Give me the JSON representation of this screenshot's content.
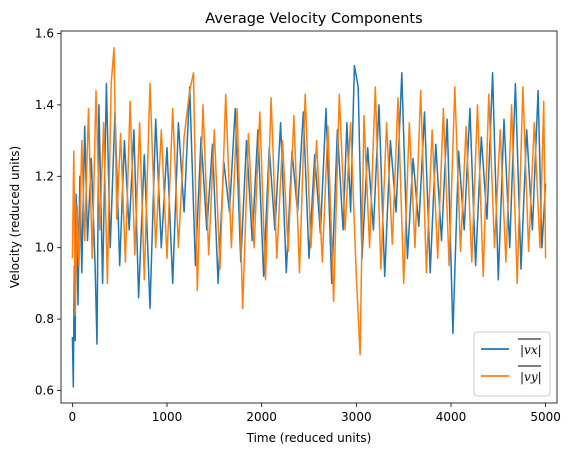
{
  "chart_data": {
    "type": "line",
    "title": "Average Velocity Components",
    "xlabel": "Time (reduced units)",
    "ylabel": "Velocity (reduced units)",
    "xlim": [
      -120,
      5120
    ],
    "ylim": [
      0.565,
      1.607
    ],
    "xticks": [
      0,
      1000,
      2000,
      3000,
      4000,
      5000
    ],
    "xtick_labels": [
      "0",
      "1000",
      "2000",
      "3000",
      "4000",
      "5000"
    ],
    "yticks": [
      0.6,
      0.8,
      1.0,
      1.2,
      1.4,
      1.6
    ],
    "ytick_labels": [
      "0.6",
      "0.8",
      "1.0",
      "1.2",
      "1.4",
      "1.6"
    ],
    "grid": false,
    "legend_position": "lower-right",
    "series": [
      {
        "name": "|v_x| (overlined)",
        "legend_label": "|vx|",
        "color": "#1f77b4",
        "x": [
          0,
          10,
          20,
          30,
          40,
          60,
          80,
          100,
          130,
          160,
          200,
          240,
          260,
          280,
          320,
          360,
          400,
          450,
          500,
          550,
          600,
          650,
          700,
          760,
          820,
          880,
          940,
          1000,
          1060,
          1120,
          1180,
          1240,
          1300,
          1360,
          1420,
          1480,
          1540,
          1600,
          1660,
          1720,
          1780,
          1840,
          1900,
          1960,
          2020,
          2080,
          2140,
          2200,
          2260,
          2320,
          2380,
          2440,
          2500,
          2560,
          2620,
          2680,
          2740,
          2800,
          2860,
          2900,
          2940,
          2980,
          3020,
          3060,
          3120,
          3180,
          3240,
          3300,
          3360,
          3420,
          3480,
          3540,
          3600,
          3660,
          3720,
          3780,
          3840,
          3900,
          3960,
          4020,
          4080,
          4140,
          4200,
          4260,
          4320,
          4380,
          4440,
          4500,
          4560,
          4620,
          4680,
          4740,
          4800,
          4860,
          4920,
          4960,
          5000
        ],
        "y": [
          0.75,
          0.61,
          0.95,
          0.74,
          1.15,
          0.84,
          1.2,
          0.93,
          1.34,
          1.02,
          1.25,
          0.95,
          0.73,
          1.4,
          0.9,
          1.46,
          1.0,
          1.38,
          0.95,
          1.3,
          1.05,
          1.33,
          0.86,
          1.26,
          0.83,
          1.36,
          1.0,
          1.28,
          0.9,
          1.35,
          1.1,
          1.45,
          0.95,
          1.31,
          1.05,
          1.29,
          0.9,
          1.24,
          1.1,
          1.39,
          0.96,
          1.3,
          1.02,
          1.33,
          0.92,
          1.28,
          1.05,
          1.35,
          0.93,
          1.27,
          1.1,
          1.38,
          0.97,
          1.26,
          1.04,
          1.39,
          0.9,
          1.33,
          1.05,
          1.35,
          1.1,
          1.51,
          1.45,
          0.97,
          1.28,
          1.05,
          1.4,
          0.92,
          1.3,
          1.1,
          1.49,
          0.97,
          1.25,
          1.06,
          1.38,
          0.93,
          1.29,
          1.02,
          1.36,
          0.76,
          1.27,
          1.05,
          1.39,
          0.95,
          1.31,
          1.08,
          1.49,
          0.91,
          1.36,
          1.0,
          1.46,
          0.94,
          1.33,
          1.05,
          1.44,
          1.0,
          1.18
        ]
      },
      {
        "name": "|v_y| (overlined)",
        "legend_label": "|vy|",
        "color": "#ff7f0e",
        "x": [
          0,
          15,
          30,
          50,
          70,
          100,
          130,
          170,
          210,
          250,
          290,
          330,
          370,
          410,
          440,
          470,
          510,
          560,
          610,
          660,
          710,
          760,
          820,
          880,
          940,
          1000,
          1060,
          1120,
          1180,
          1240,
          1280,
          1320,
          1380,
          1440,
          1500,
          1560,
          1620,
          1680,
          1740,
          1800,
          1860,
          1920,
          1980,
          2040,
          2100,
          2160,
          2220,
          2280,
          2340,
          2400,
          2460,
          2520,
          2580,
          2640,
          2700,
          2760,
          2820,
          2880,
          2940,
          3000,
          3040,
          3080,
          3140,
          3200,
          3260,
          3320,
          3380,
          3440,
          3500,
          3560,
          3620,
          3680,
          3740,
          3800,
          3860,
          3920,
          3980,
          4040,
          4100,
          4160,
          4220,
          4280,
          4340,
          4400,
          4460,
          4520,
          4580,
          4640,
          4700,
          4760,
          4820,
          4880,
          4940,
          4980,
          5000
        ],
        "y": [
          0.97,
          1.27,
          0.81,
          1.12,
          0.95,
          1.3,
          1.02,
          1.39,
          0.97,
          1.44,
          1.05,
          1.35,
          0.9,
          1.46,
          1.56,
          1.08,
          1.32,
          0.96,
          1.41,
          0.98,
          1.35,
          0.91,
          1.46,
          1.0,
          1.33,
          0.97,
          1.39,
          1.0,
          1.31,
          1.44,
          1.49,
          0.88,
          1.4,
          0.98,
          1.33,
          0.94,
          1.43,
          1.0,
          1.39,
          0.83,
          1.32,
          1.0,
          1.38,
          0.91,
          1.42,
          0.97,
          1.3,
          0.99,
          1.37,
          0.93,
          1.43,
          1.0,
          1.3,
          0.96,
          1.34,
          0.85,
          1.43,
          1.05,
          1.35,
          0.92,
          0.7,
          1.37,
          1.0,
          1.45,
          0.94,
          1.35,
          1.01,
          1.42,
          0.9,
          1.35,
          1.0,
          1.44,
          0.93,
          1.33,
          0.97,
          1.39,
          0.95,
          1.45,
          0.99,
          1.34,
          0.96,
          1.4,
          0.92,
          1.43,
          1.0,
          1.33,
          0.96,
          1.4,
          0.9,
          1.45,
          0.99,
          1.35,
          1.0,
          1.41,
          0.97
        ]
      }
    ]
  }
}
